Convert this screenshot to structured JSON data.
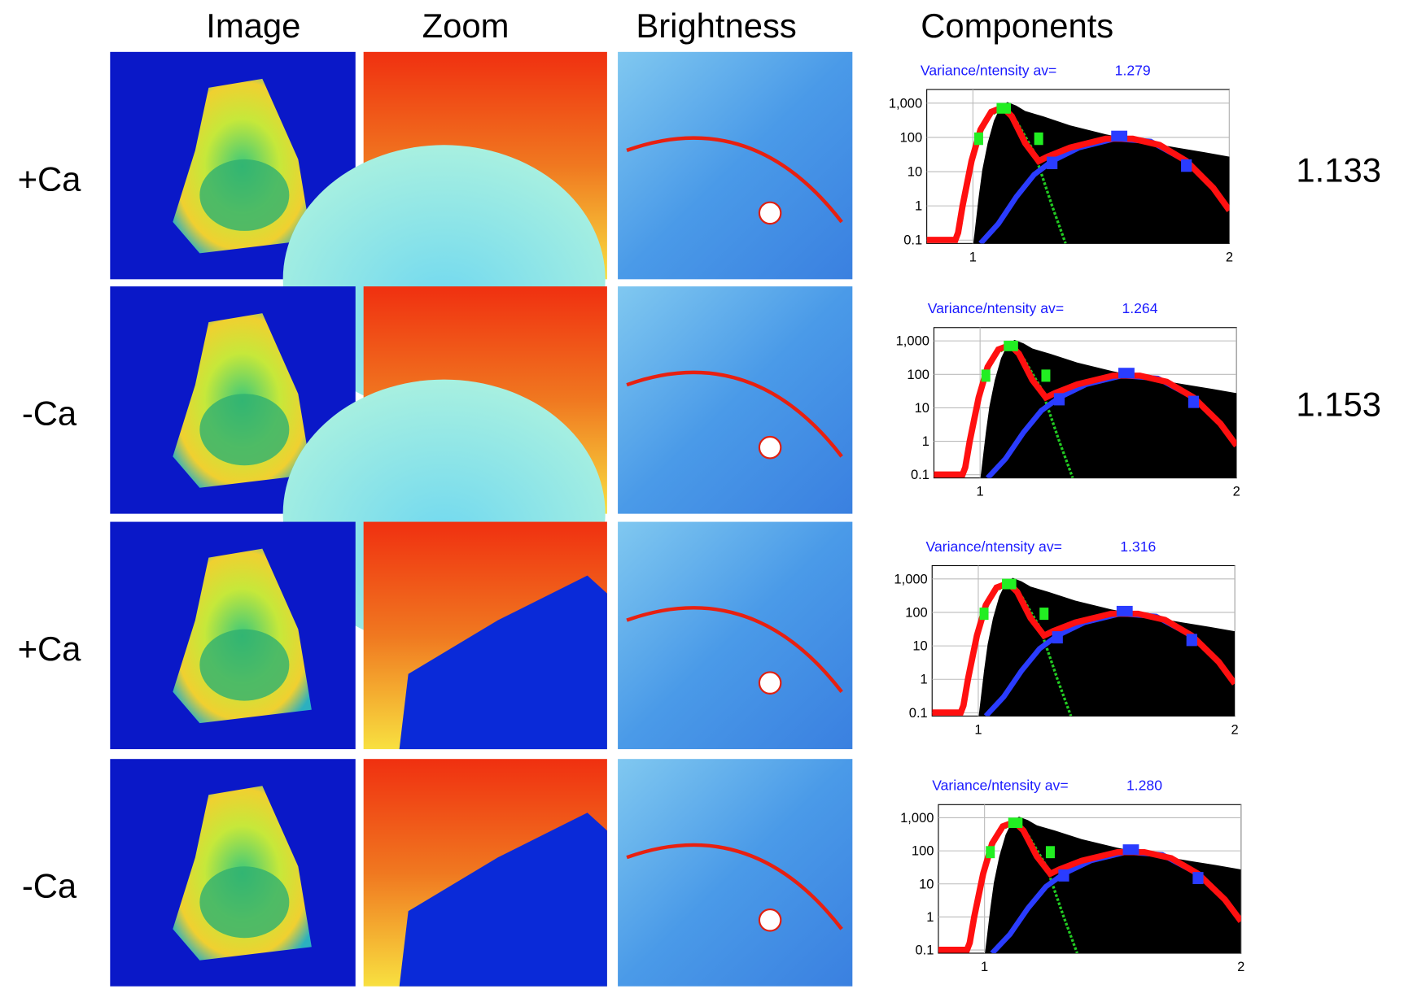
{
  "headers": [
    "Image",
    "Zoom",
    "Brightness",
    "Components"
  ],
  "rows": [
    {
      "label": "+Ca",
      "histogram": {
        "title": "Variance/ntensity av=",
        "average": "1.279"
      },
      "ratio": "1.133"
    },
    {
      "label": "-Ca",
      "histogram": {
        "title": "Variance/ntensity av=",
        "average": "1.264"
      },
      "ratio": "1.153"
    },
    {
      "label": "+Ca",
      "histogram": {
        "title": "Variance/ntensity av=",
        "average": "1.316"
      }
    },
    {
      "label": "-Ca",
      "histogram": {
        "title": "Variance/ntensity av=",
        "average": "1.280"
      }
    }
  ],
  "histogram_axes": {
    "log_y": true,
    "ylim": [
      0.08,
      2500
    ],
    "yticks": [
      {
        "value": 1000,
        "label": "1,000"
      },
      100,
      10,
      1,
      0.1
    ],
    "xlim": [
      0.82,
      2
    ],
    "xticks": [
      1,
      2
    ]
  }
}
